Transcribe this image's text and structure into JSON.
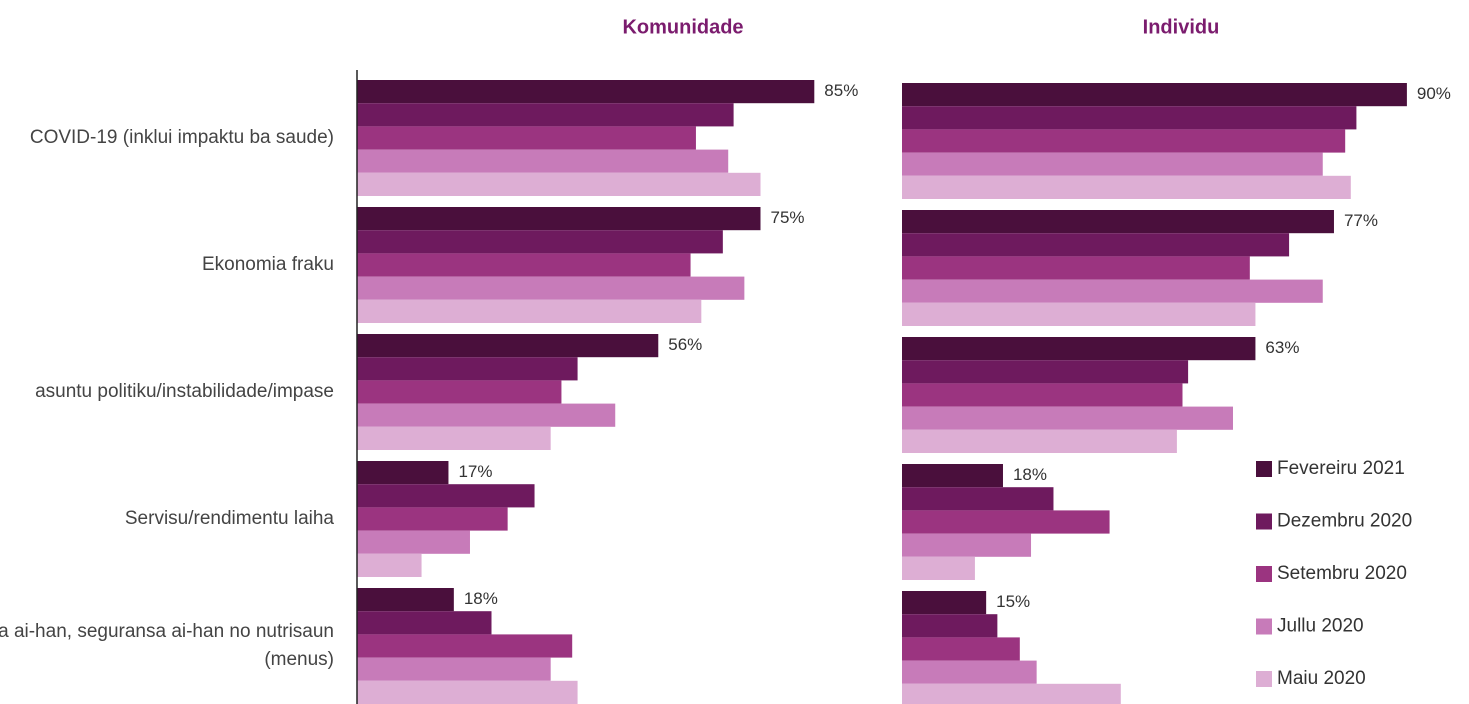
{
  "chart_data": [
    {
      "type": "bar",
      "orientation": "horizontal",
      "title": "Komunidade",
      "categories": [
        "COVID-19 (inklui impaktu ba saude)",
        "Ekonomia fraku",
        "asuntu politiku/instabilidade/impase",
        "Servisu/rendimentu laiha",
        "a ai-han, seguransa ai-han no nutrisaun (menus)"
      ],
      "xlim": [
        0,
        100
      ],
      "series": [
        {
          "color": "#4a0f3c",
          "values": [
            85,
            75,
            56,
            17,
            18
          ],
          "value_labels": [
            "85%",
            "75%",
            "56%",
            "17%",
            "18%"
          ]
        },
        {
          "color": "#6e1a5e",
          "values": [
            70,
            68,
            41,
            33,
            25
          ]
        },
        {
          "color": "#9b3480",
          "values": [
            63,
            62,
            38,
            28,
            40
          ]
        },
        {
          "color": "#c77bb9",
          "values": [
            69,
            72,
            48,
            21,
            36
          ]
        },
        {
          "color": "#ddaed4",
          "values": [
            75,
            64,
            36,
            12,
            41
          ]
        }
      ]
    },
    {
      "type": "bar",
      "orientation": "horizontal",
      "title": "Individu",
      "xlim": [
        0,
        100
      ],
      "series": [
        {
          "name": "Fevereiru 2021",
          "color": "#4a0f3c",
          "values": [
            90,
            77,
            63,
            18,
            15
          ],
          "value_labels": [
            "90%",
            "77%",
            "63%",
            "18%",
            "15%"
          ]
        },
        {
          "name": "Dezembru 2020",
          "color": "#6e1a5e",
          "values": [
            81,
            69,
            51,
            27,
            17
          ]
        },
        {
          "name": "Setembru 2020",
          "color": "#9b3480",
          "values": [
            79,
            62,
            50,
            37,
            21
          ]
        },
        {
          "name": "Jullu 2020",
          "color": "#c77bb9",
          "values": [
            75,
            75,
            59,
            23,
            24
          ]
        },
        {
          "name": "Maiu 2020",
          "color": "#ddaed4",
          "values": [
            80,
            63,
            49,
            13,
            39
          ]
        }
      ]
    }
  ]
}
